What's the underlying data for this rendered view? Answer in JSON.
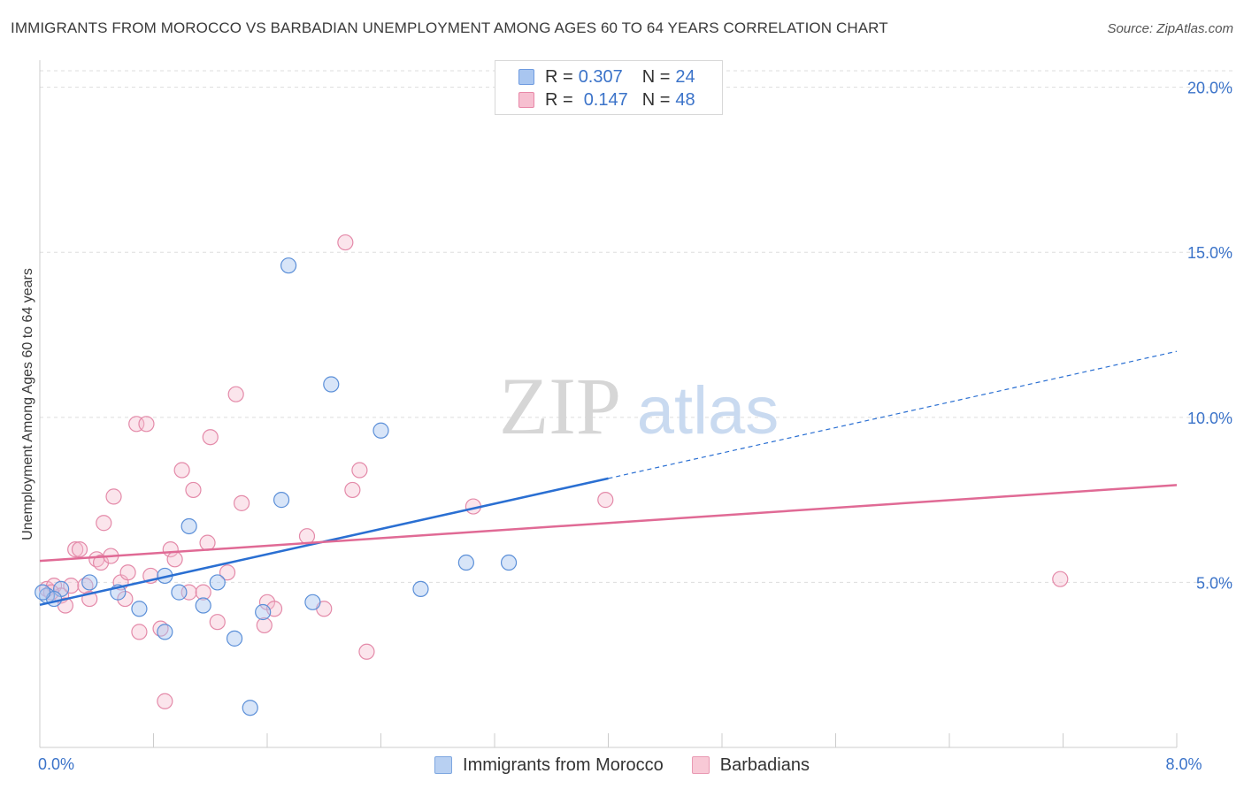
{
  "title": "IMMIGRANTS FROM MOROCCO VS BARBADIAN UNEMPLOYMENT AMONG AGES 60 TO 64 YEARS CORRELATION CHART",
  "source": "Source: ZipAtlas.com",
  "watermark": {
    "zip": "ZIP",
    "atlas": "atlas"
  },
  "legend_top": {
    "rows": [
      {
        "r_label": "R =",
        "r_value": "0.307",
        "n_label": "N =",
        "n_value": "24",
        "color": "#a9c6f0",
        "border": "#6e9be0"
      },
      {
        "r_label": "R =",
        "r_value": "0.147",
        "n_label": "N =",
        "n_value": "48",
        "color": "#f6bfd0",
        "border": "#e888a8"
      }
    ]
  },
  "legend_bottom": [
    {
      "label": "Immigrants from Morocco",
      "color": "#b8d0f2",
      "border": "#7ea7e0"
    },
    {
      "label": "Barbadians",
      "color": "#f8c9d6",
      "border": "#e99ab3"
    }
  ],
  "colors": {
    "blue_line": "#2a6fd2",
    "pink_line": "#e06a95",
    "blue_point_fill": "rgba(168,198,240,0.45)",
    "blue_point_stroke": "#5b8fd8",
    "pink_point_fill": "rgba(246,190,208,0.40)",
    "pink_point_stroke": "#e48aa9",
    "axis_label": "#3b73c9",
    "grid": "#dddddd"
  },
  "chart_data": {
    "type": "scatter",
    "ylabel": "Unemployment Among Ages 60 to 64 years",
    "xlim": [
      0,
      8
    ],
    "ylim": [
      0,
      20.5
    ],
    "x_tick_labels": [
      {
        "value": 0,
        "label": "0.0%"
      },
      {
        "value": 8,
        "label": "8.0%"
      }
    ],
    "y_tick_labels": [
      {
        "value": 5,
        "label": "5.0%"
      },
      {
        "value": 10,
        "label": "10.0%"
      },
      {
        "value": 15,
        "label": "15.0%"
      },
      {
        "value": 20,
        "label": "20.0%"
      }
    ],
    "grid": "horizontal dashed",
    "series": [
      {
        "name": "Immigrants from Morocco",
        "points": [
          [
            0.05,
            4.6
          ],
          [
            0.15,
            4.8
          ],
          [
            0.35,
            5.0
          ],
          [
            0.55,
            4.7
          ],
          [
            0.7,
            4.2
          ],
          [
            0.88,
            5.2
          ],
          [
            0.98,
            4.7
          ],
          [
            0.88,
            3.5
          ],
          [
            1.05,
            6.7
          ],
          [
            1.15,
            4.3
          ],
          [
            1.25,
            5.0
          ],
          [
            1.37,
            3.3
          ],
          [
            1.48,
            1.2
          ],
          [
            1.57,
            4.1
          ],
          [
            1.7,
            7.5
          ],
          [
            1.75,
            14.6
          ],
          [
            1.92,
            4.4
          ],
          [
            2.05,
            11.0
          ],
          [
            2.4,
            9.6
          ],
          [
            2.68,
            4.8
          ],
          [
            3.0,
            5.6
          ],
          [
            3.3,
            5.6
          ],
          [
            0.1,
            4.5
          ],
          [
            0.02,
            4.7
          ]
        ],
        "trend": {
          "x0": 0,
          "y0": 4.32,
          "x1": 4.0,
          "y1": 8.15,
          "dash_to_x": 8.0,
          "dash_to_y": 12.0
        }
      },
      {
        "name": "Barbadians",
        "points": [
          [
            0.05,
            4.8
          ],
          [
            0.1,
            4.9
          ],
          [
            0.15,
            4.6
          ],
          [
            0.18,
            4.3
          ],
          [
            0.22,
            4.9
          ],
          [
            0.25,
            6.0
          ],
          [
            0.28,
            6.0
          ],
          [
            0.32,
            4.9
          ],
          [
            0.35,
            4.5
          ],
          [
            0.4,
            5.7
          ],
          [
            0.43,
            5.6
          ],
          [
            0.45,
            6.8
          ],
          [
            0.5,
            5.8
          ],
          [
            0.52,
            7.6
          ],
          [
            0.57,
            5.0
          ],
          [
            0.6,
            4.5
          ],
          [
            0.62,
            5.3
          ],
          [
            0.68,
            9.8
          ],
          [
            0.7,
            3.5
          ],
          [
            0.75,
            9.8
          ],
          [
            0.78,
            5.2
          ],
          [
            0.85,
            3.6
          ],
          [
            0.88,
            1.4
          ],
          [
            0.92,
            6.0
          ],
          [
            0.95,
            5.7
          ],
          [
            1.0,
            8.4
          ],
          [
            1.05,
            4.7
          ],
          [
            1.08,
            7.8
          ],
          [
            1.15,
            4.7
          ],
          [
            1.18,
            6.2
          ],
          [
            1.2,
            9.4
          ],
          [
            1.25,
            3.8
          ],
          [
            1.32,
            5.3
          ],
          [
            1.38,
            10.7
          ],
          [
            1.42,
            7.4
          ],
          [
            1.58,
            3.7
          ],
          [
            1.6,
            4.4
          ],
          [
            1.65,
            4.2
          ],
          [
            1.88,
            6.4
          ],
          [
            2.0,
            4.2
          ],
          [
            2.15,
            15.3
          ],
          [
            2.2,
            7.8
          ],
          [
            2.25,
            8.4
          ],
          [
            2.3,
            2.9
          ],
          [
            3.05,
            7.3
          ],
          [
            3.98,
            7.5
          ],
          [
            7.18,
            5.1
          ],
          [
            0.08,
            4.7
          ]
        ],
        "trend": {
          "x0": 0,
          "y0": 5.65,
          "x1": 8.0,
          "y1": 7.95
        }
      }
    ]
  }
}
